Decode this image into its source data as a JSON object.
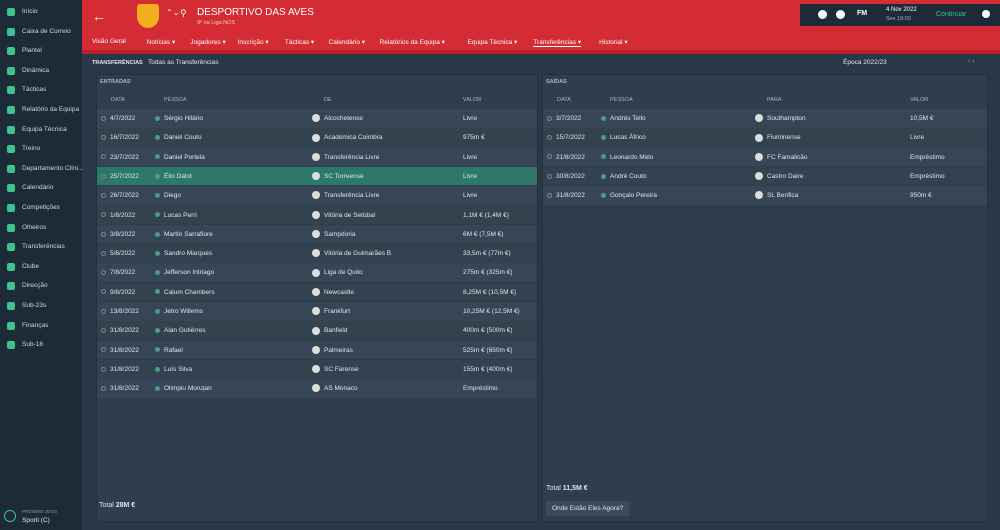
{
  "sidebar": {
    "items": [
      "Início",
      "Caixa de Correio",
      "Plantel",
      "Dinâmica",
      "Tácticas",
      "Relatório da Equipa",
      "Equipa Técnica",
      "Treino",
      "Departamento Clíni...",
      "Calendário",
      "Competições",
      "Olheiros",
      "Transferências",
      "Clube",
      "Direcção",
      "Sub-23s",
      "Finanças",
      "Sub-18"
    ],
    "next_match_label": "PRÓXIMO JOGO",
    "next_match": "Sporti (C)"
  },
  "header": {
    "club": "DESPORTIVO DAS AVES",
    "position": "9º na Liga NOS",
    "logo_text": "FM",
    "date": "4 Nov 2022",
    "time": "Sex 19:00",
    "continue": "Continuar",
    "nav": [
      "Visão Geral",
      "Notícias",
      "Jogadores",
      "Inscrição",
      "Tácticas",
      "Calendário",
      "Relatórios da Equipa",
      "Equipa Técnica",
      "Transferências",
      "Historial"
    ]
  },
  "toolbar": {
    "title": "TRANSFERÊNCIAS",
    "filter": "Todas as Transferências",
    "season": "Época 2022/23"
  },
  "entradas": {
    "title": "ENTRADAS",
    "columns": [
      "DATA",
      "PESSOA",
      "DE",
      "VALOR"
    ],
    "rows": [
      [
        "4/7/2022",
        "Sérgio Hilário",
        "Alcochetense",
        "Livre"
      ],
      [
        "16/7/2022",
        "Daniel Couto",
        "Académica Coimbra",
        "975m €"
      ],
      [
        "23/7/2022",
        "Daniel Portela",
        "Transferência Livre",
        "Livre"
      ],
      [
        "25/7/2022",
        "Élio Dalot",
        "SC Torreense",
        "Livre"
      ],
      [
        "26/7/2022",
        "Diego",
        "Transferência Livre",
        "Livre"
      ],
      [
        "1/8/2022",
        "Lucas Perri",
        "Vitória de Setúbal",
        "1,1M € (1,4M €)"
      ],
      [
        "3/8/2022",
        "Martín Sarrafiore",
        "Sampdoria",
        "6M € (7,5M €)"
      ],
      [
        "5/8/2022",
        "Sandro Marques",
        "Vitória de Guimarães B",
        "33,5m € (77m €)"
      ],
      [
        "7/8/2022",
        "Jefferson Intriago",
        "Liga de Quito",
        "275m € (325m €)"
      ],
      [
        "9/8/2022",
        "Calum Chambers",
        "Newcastle",
        "8,25M € (10,5M €)"
      ],
      [
        "13/8/2022",
        "Jetro Willems",
        "Frankfurt",
        "10,25M € (12,5M €)"
      ],
      [
        "31/8/2022",
        "Alan Gutiérres",
        "Banfield",
        "400m € (500m €)"
      ],
      [
        "31/8/2022",
        "Rafael",
        "Palmeiras",
        "525m € (650m €)"
      ],
      [
        "31/8/2022",
        "Luís Silva",
        "SC Farense",
        "155m € (400m €)"
      ],
      [
        "31/8/2022",
        "Olimpiu Moruțan",
        "AS Monaco",
        "Empréstimo"
      ]
    ],
    "total_label": "Total",
    "total": "28M €"
  },
  "saidas": {
    "title": "SAÍDAS",
    "columns": [
      "DATA",
      "PESSOA",
      "PARA",
      "VALOR"
    ],
    "rows": [
      [
        "3/7/2022",
        "Andrés Tello",
        "Southampton",
        "10,5M €"
      ],
      [
        "15/7/2022",
        "Lucas Áfrico",
        "Fluminense",
        "Livre"
      ],
      [
        "21/8/2022",
        "Leonardo Melo",
        "FC Famalicão",
        "Empréstimo"
      ],
      [
        "30/8/2022",
        "André Couto",
        "Castro Daire",
        "Empréstimo"
      ],
      [
        "31/8/2022",
        "Gonçalo Pereira",
        "SL Benfica",
        "950m €"
      ]
    ],
    "total_label": "Total",
    "total": "11,5M €",
    "button": "Onde Estão Eles Agora?"
  }
}
